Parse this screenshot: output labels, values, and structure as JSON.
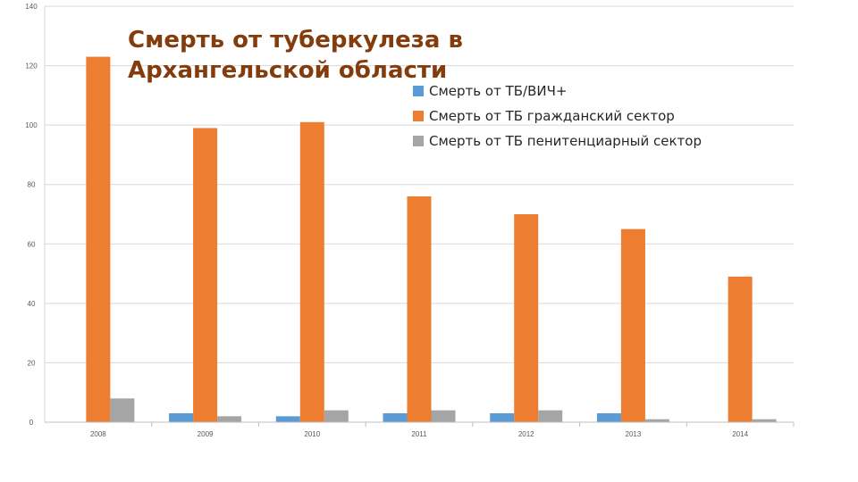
{
  "chart_data": {
    "type": "bar",
    "title": "Смерть от туберкулеза в Архангельской области",
    "categories": [
      "2008",
      "2009",
      "2010",
      "2011",
      "2012",
      "2013",
      "2014"
    ],
    "series": [
      {
        "name": "Смерть  от ТБ/ВИЧ+",
        "color": "#5b9bd5",
        "values": [
          0,
          3,
          2,
          3,
          3,
          3,
          0
        ]
      },
      {
        "name": "Смерть от ТБ  гражданский сектор",
        "color": "#ed7d31",
        "values": [
          123,
          99,
          101,
          76,
          70,
          65,
          49
        ]
      },
      {
        "name": "Смерть от ТБ пенитенциарный сектор",
        "color": "#a5a5a5",
        "values": [
          8,
          2,
          4,
          4,
          4,
          1,
          1
        ]
      }
    ],
    "ylim": [
      0,
      140
    ],
    "yticks": [
      0,
      20,
      40,
      60,
      80,
      100,
      120,
      140
    ],
    "grid": true,
    "legend_position": "top-right"
  }
}
